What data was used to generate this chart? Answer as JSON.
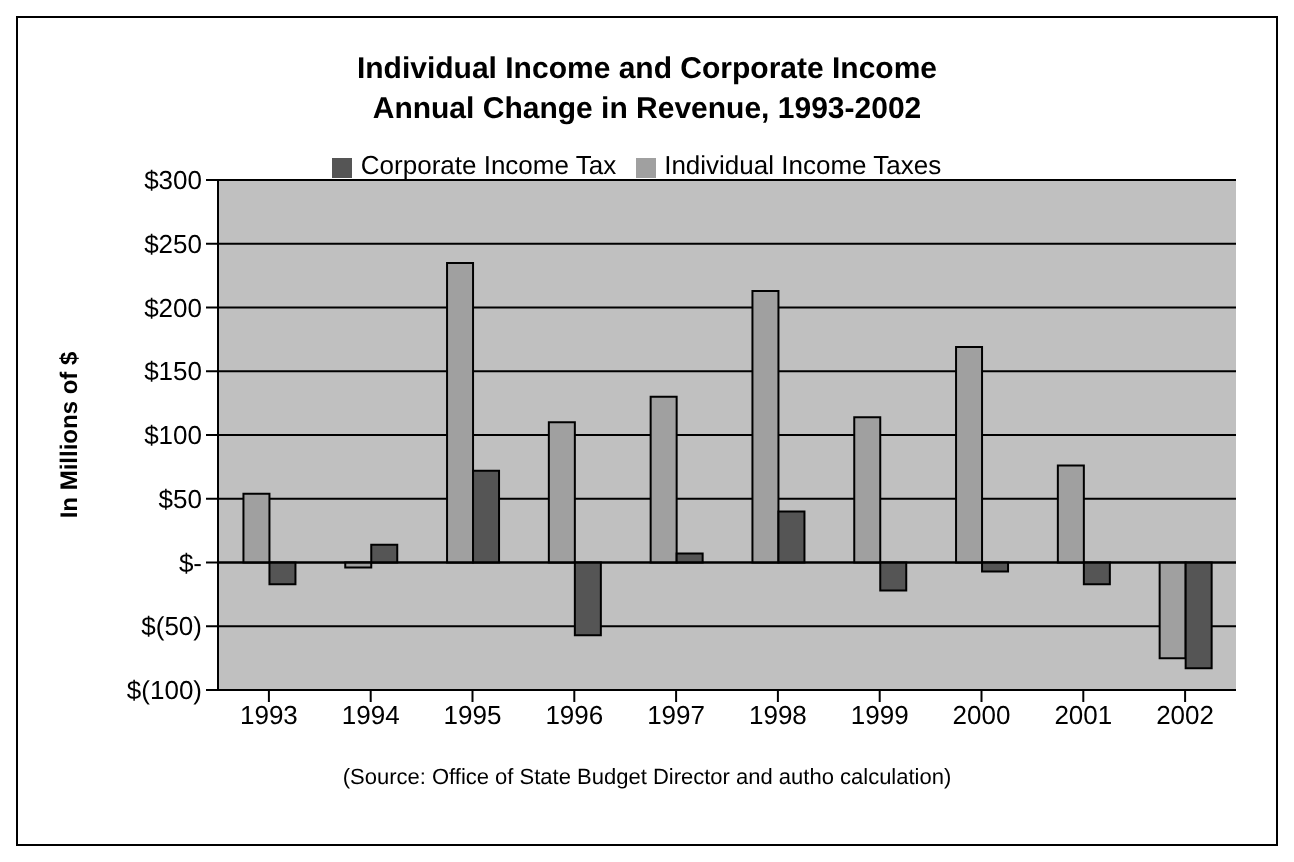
{
  "chart_data": {
    "type": "bar",
    "title": "Individual Income and Corporate Income\nAnnual Change in Revenue, 1993-2002",
    "ylabel": "In Millions of $",
    "annotations": [
      "(Source: Office of State Budget Director and autho calculation)"
    ],
    "categories": [
      "1993",
      "1994",
      "1995",
      "1996",
      "1997",
      "1998",
      "1999",
      "2000",
      "2001",
      "2002"
    ],
    "series": [
      {
        "name": "Individual Income Taxes",
        "color": "#a0a0a0",
        "values": [
          54,
          -4,
          235,
          110,
          130,
          213,
          114,
          169,
          76,
          -75
        ]
      },
      {
        "name": "Corporate Income Tax",
        "color": "#555555",
        "values": [
          -17,
          14,
          72,
          -57,
          7,
          40,
          -22,
          -7,
          -17,
          -83
        ]
      }
    ],
    "ylim": [
      -100,
      300
    ],
    "yticks": [
      {
        "value": -100,
        "label": "$(100)"
      },
      {
        "value": -50,
        "label": "$(50)"
      },
      {
        "value": 0,
        "label": "$-"
      },
      {
        "value": 50,
        "label": "$50"
      },
      {
        "value": 100,
        "label": "$100"
      },
      {
        "value": 150,
        "label": "$150"
      },
      {
        "value": 200,
        "label": "$200"
      },
      {
        "value": 250,
        "label": "$250"
      },
      {
        "value": 300,
        "label": "$300"
      }
    ],
    "grid": "y",
    "legend": "top"
  }
}
